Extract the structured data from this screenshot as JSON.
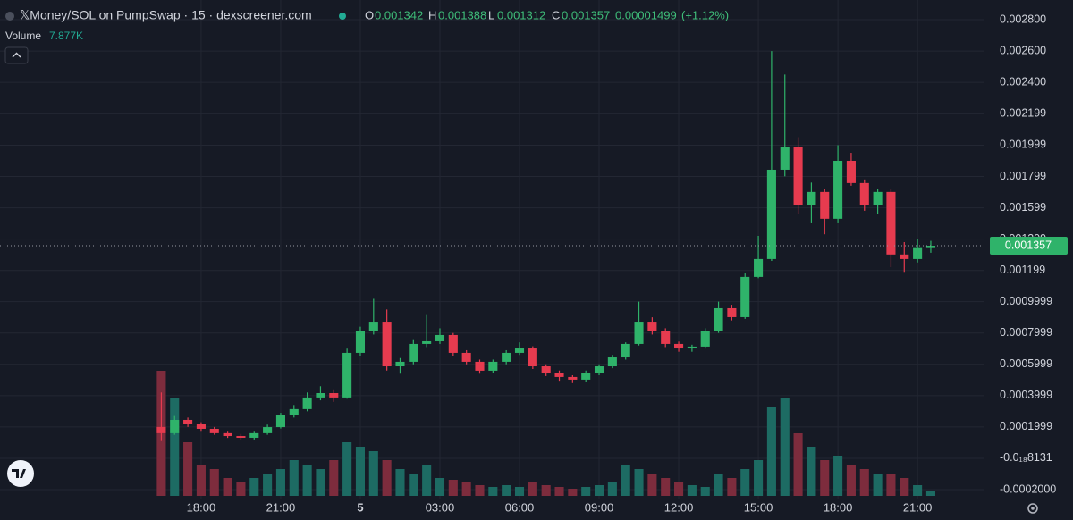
{
  "chart_data": {
    "type": "candlestick",
    "title": "𝕏Money/SOL on PumpSwap · 15 · dexscreener.com",
    "ohlc_letters": [
      "O",
      "H",
      "L",
      "C"
    ],
    "change": 1.499e-05,
    "change_pct": {
      "value": 1.12,
      "label": "(+1.12%)"
    },
    "volume_title": "Volume",
    "last_volume": {
      "value": 7877,
      "label": "7.877K"
    },
    "up_color": "#2fb36a",
    "down_color": "#e63b4f",
    "volume_up_color": "#1d6b63",
    "volume_down_color": "#7d2c3d",
    "grid": true,
    "x": [
      16.5,
      17,
      17.5,
      18,
      18.5,
      19,
      19.5,
      20,
      20.5,
      21,
      21.5,
      22,
      22.5,
      23,
      23.5,
      24,
      24.5,
      25,
      25.5,
      26,
      26.5,
      27,
      27.5,
      28,
      28.5,
      29,
      29.5,
      30,
      30.5,
      31,
      31.5,
      32,
      32.5,
      33,
      33.5,
      34,
      34.5,
      35,
      35.5,
      36,
      36.5,
      37,
      37.5,
      38,
      38.5,
      39,
      39.5,
      40,
      40.5,
      41,
      41.5,
      42,
      42.5,
      43,
      43.5,
      44,
      44.5,
      45,
      45.5
    ],
    "open": [
      0.0002,
      0.00016,
      0.000245,
      0.000217,
      0.000188,
      0.00016,
      0.000142,
      0.000131,
      0.00016,
      0.000199,
      0.000274,
      0.000314,
      0.000388,
      0.000416,
      0.000388,
      0.000673,
      0.000815,
      0.000872,
      0.000587,
      0.000616,
      0.00073,
      0.000747,
      0.000787,
      0.000673,
      0.000616,
      0.000559,
      0.000616,
      0.000673,
      0.000701,
      0.000587,
      0.000542,
      0.000519,
      0.000502,
      0.000542,
      0.000587,
      0.000644,
      0.00073,
      0.000872,
      0.000815,
      0.00073,
      0.000701,
      0.000713,
      0.000815,
      0.000958,
      0.000901,
      0.001158,
      0.001272,
      0.001842,
      0.001985,
      0.001614,
      0.0017,
      0.001529,
      0.001899,
      0.001757,
      0.001614,
      0.0017,
      0.001301,
      0.001272,
      0.001342
    ],
    "high": [
      0.00042,
      0.00027,
      0.00026,
      0.00023,
      0.0002,
      0.000175,
      0.000155,
      0.000175,
      0.000215,
      0.00029,
      0.00034,
      0.00042,
      0.00046,
      0.00044,
      0.0007,
      0.00084,
      0.001018,
      0.00095,
      0.00064,
      0.00076,
      0.00092,
      0.00083,
      0.0008,
      0.00069,
      0.00063,
      0.00063,
      0.00069,
      0.00074,
      0.000715,
      0.0006,
      0.00056,
      0.00053,
      0.00056,
      0.0006,
      0.00066,
      0.00074,
      0.001,
      0.0009,
      0.00083,
      0.000745,
      0.000725,
      0.00083,
      0.001,
      0.00098,
      0.00118,
      0.00142,
      0.0026,
      0.00245,
      0.00205,
      0.00176,
      0.00172,
      0.001999,
      0.00195,
      0.00178,
      0.00172,
      0.00172,
      0.00138,
      0.0014,
      0.001388
    ],
    "low": [
      0.00011,
      0.00015,
      0.0002,
      0.000175,
      0.00015,
      0.00013,
      0.000115,
      0.00012,
      0.00015,
      0.00019,
      0.00026,
      0.0003,
      0.00037,
      0.00036,
      0.00038,
      0.00065,
      0.00079,
      0.00056,
      0.00054,
      0.0006,
      0.00071,
      0.00073,
      0.00065,
      0.0006,
      0.00054,
      0.000545,
      0.0006,
      0.00066,
      0.00057,
      0.000525,
      0.000495,
      0.00048,
      0.00049,
      0.00053,
      0.000575,
      0.00063,
      0.00072,
      0.00079,
      0.00071,
      0.00068,
      0.00068,
      0.0007,
      0.0008,
      0.00088,
      0.00089,
      0.00115,
      0.00126,
      0.0018,
      0.00156,
      0.0015,
      0.00143,
      0.0015,
      0.00174,
      0.00158,
      0.00156,
      0.00122,
      0.00119,
      0.00125,
      0.001312
    ],
    "close": [
      0.00016,
      0.000245,
      0.000217,
      0.000188,
      0.00016,
      0.000142,
      0.000131,
      0.00016,
      0.000199,
      0.000274,
      0.000314,
      0.000388,
      0.000416,
      0.000388,
      0.000673,
      0.000815,
      0.000872,
      0.000587,
      0.000616,
      0.00073,
      0.000747,
      0.000787,
      0.000673,
      0.000616,
      0.000559,
      0.000616,
      0.000673,
      0.000701,
      0.000587,
      0.000542,
      0.000519,
      0.000502,
      0.000542,
      0.000587,
      0.000644,
      0.00073,
      0.000872,
      0.000815,
      0.00073,
      0.000701,
      0.000713,
      0.000815,
      0.000958,
      0.000901,
      0.001158,
      0.001272,
      0.001842,
      0.001985,
      0.001614,
      0.0017,
      0.001529,
      0.001899,
      0.001757,
      0.001614,
      0.0017,
      0.001301,
      0.001272,
      0.001342,
      0.001357
    ],
    "volume": [
      220500,
      173250,
      94500,
      55125,
      47250,
      31500,
      23625,
      31500,
      39375,
      47250,
      63000,
      55125,
      47250,
      63000,
      94500,
      86625,
      78750,
      63000,
      47250,
      39375,
      55125,
      31500,
      28350,
      23625,
      18900,
      15750,
      18900,
      15750,
      23625,
      18900,
      15750,
      12600,
      15750,
      18900,
      23625,
      55125,
      47250,
      39375,
      31500,
      23625,
      18900,
      15750,
      39375,
      31500,
      47250,
      63000,
      157500,
      173250,
      110250,
      86625,
      63000,
      70875,
      55125,
      47250,
      39375,
      39375,
      31500,
      18900,
      7877
    ],
    "xlim": [
      10.42,
      47.49
    ],
    "xticks": [
      {
        "value": 18,
        "label": "18:00"
      },
      {
        "value": 21,
        "label": "21:00"
      },
      {
        "value": 24,
        "label": "5"
      },
      {
        "value": 27,
        "label": "03:00"
      },
      {
        "value": 30,
        "label": "06:00"
      },
      {
        "value": 33,
        "label": "09:00"
      },
      {
        "value": 36,
        "label": "12:00"
      },
      {
        "value": 39,
        "label": "15:00"
      },
      {
        "value": 42,
        "label": "18:00"
      },
      {
        "value": 45,
        "label": "21:00"
      }
    ],
    "ylim": [
      -0.000257,
      0.0029255
    ],
    "yticks": [
      {
        "value": 0.0028,
        "label": "0.002800"
      },
      {
        "value": 0.0026,
        "label": "0.002600"
      },
      {
        "value": 0.0024,
        "label": "0.002400"
      },
      {
        "value": 0.002199,
        "label": "0.002199"
      },
      {
        "value": 0.001999,
        "label": "0.001999"
      },
      {
        "value": 0.001799,
        "label": "0.001799"
      },
      {
        "value": 0.001599,
        "label": "0.001599"
      },
      {
        "value": 0.001399,
        "label": "0.001399"
      },
      {
        "value": 0.001199,
        "label": "0.001199"
      },
      {
        "value": 0.0009999,
        "label": "0.0009999"
      },
      {
        "value": 0.0007999,
        "label": "0.0007999"
      },
      {
        "value": 0.0005999,
        "label": "0.0005999"
      },
      {
        "value": 0.0003999,
        "label": "0.0003999"
      },
      {
        "value": 0.0001999,
        "label": "0.0001999"
      },
      {
        "value": -8.131e-22,
        "label": "-0.0₁₈8131"
      },
      {
        "value": -0.0002,
        "label": "-0.0002000"
      }
    ]
  }
}
